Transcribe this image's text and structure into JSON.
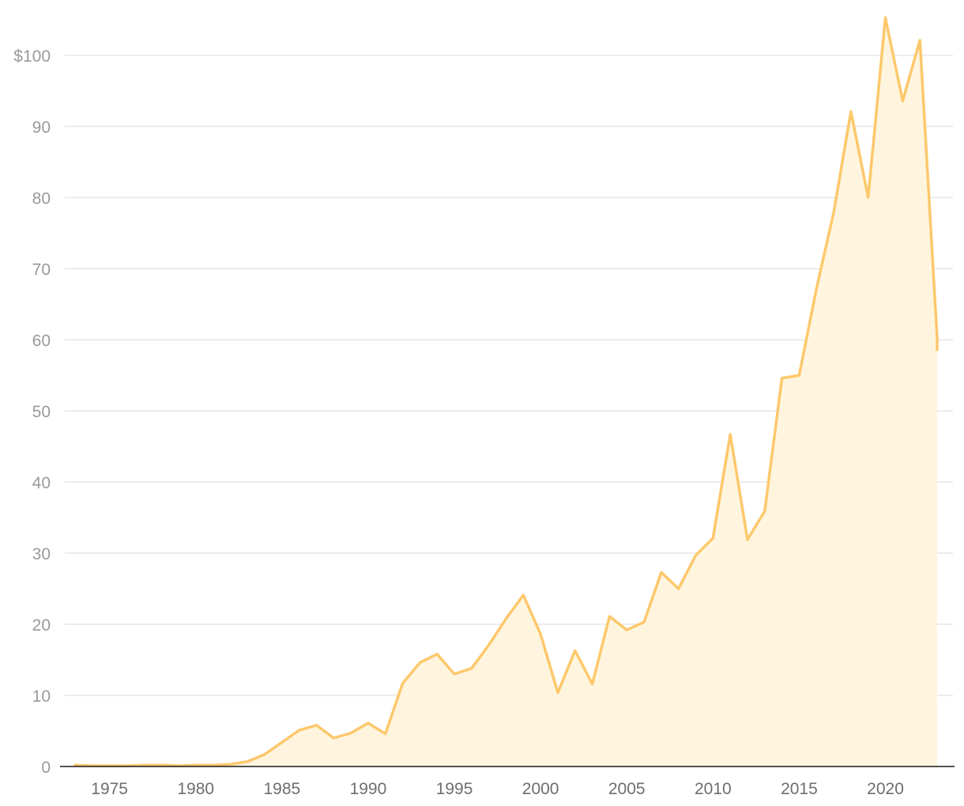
{
  "chart_data": {
    "type": "area",
    "title": "",
    "xlabel": "",
    "ylabel": "",
    "y_tick_prefix": "$",
    "ylim": [
      0,
      100
    ],
    "y_ticks": [
      0,
      10,
      20,
      30,
      40,
      50,
      60,
      70,
      80,
      90,
      100
    ],
    "y_tick_labels": [
      "0",
      "10",
      "20",
      "30",
      "40",
      "50",
      "60",
      "70",
      "80",
      "90",
      "$100"
    ],
    "x_ticks": [
      1975,
      1980,
      1985,
      1990,
      1995,
      2000,
      2005,
      2010,
      2015,
      2020
    ],
    "x_tick_labels": [
      "1975",
      "1980",
      "1985",
      "1990",
      "1995",
      "2000",
      "2005",
      "2010",
      "2015",
      "2020"
    ],
    "grid": true,
    "colors": {
      "line": "#fdc86c",
      "area": "#fff5de",
      "grid": "#e0e0e0",
      "baseline": "#1a1a1a"
    },
    "series": [
      {
        "x": [
          1973,
          1974,
          1975,
          1976,
          1977,
          1978,
          1979,
          1980,
          1981,
          1982,
          1983,
          1984,
          1985,
          1986,
          1987,
          1988,
          1989,
          1990,
          1991,
          1992,
          1993,
          1994,
          1995,
          1996,
          1997,
          1998,
          1999,
          2000,
          2001,
          2002,
          2003,
          2004,
          2005,
          2006,
          2007,
          2008,
          2009,
          2010,
          2011,
          2012,
          2013,
          2014,
          2015,
          2016,
          2017,
          2018,
          2019,
          2020,
          2021,
          2022,
          2023,
          2023
        ],
        "values": [
          0.2,
          0.1,
          0.1,
          0.1,
          0.2,
          0.2,
          0.1,
          0.2,
          0.2,
          0.3,
          0.7,
          1.7,
          3.4,
          5.1,
          5.8,
          4.0,
          4.7,
          6.1,
          4.6,
          11.7,
          14.6,
          15.8,
          13.0,
          13.8,
          17.1,
          20.8,
          24.1,
          18.6,
          10.4,
          16.3,
          11.6,
          21.1,
          19.2,
          20.3,
          27.3,
          25.0,
          29.7,
          32.1,
          46.7,
          31.9,
          35.9,
          54.6,
          55.0,
          67.2,
          77.9,
          92.1,
          80.0,
          105.3,
          93.6,
          102.1,
          60.3,
          58.6
        ]
      }
    ]
  }
}
